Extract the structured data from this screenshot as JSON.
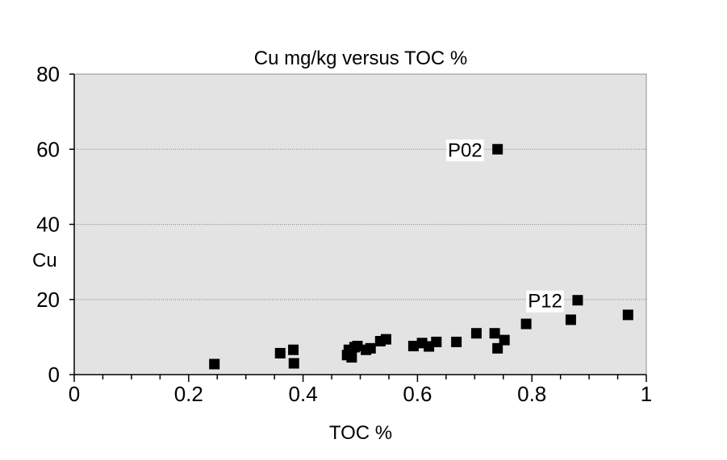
{
  "chart_data": {
    "type": "scatter",
    "title": "Cu mg/kg versus TOC %",
    "xlabel": "TOC %",
    "ylabel": "Cu",
    "xlim": [
      0,
      1
    ],
    "ylim": [
      0,
      80
    ],
    "x_ticks": [
      0,
      0.2,
      0.4,
      0.6,
      0.8,
      1
    ],
    "x_tick_labels": [
      "0",
      "0.2",
      "0.4",
      "0.6",
      "0.8",
      "1"
    ],
    "y_ticks": [
      0,
      20,
      40,
      60,
      80
    ],
    "y_tick_labels": [
      "0",
      "20",
      "40",
      "60",
      "80"
    ],
    "grid": "horizontal",
    "plot_background": "#e3e3e3",
    "marker_color": "#000000",
    "points": [
      {
        "x": 0.245,
        "y": 2.8
      },
      {
        "x": 0.36,
        "y": 5.7
      },
      {
        "x": 0.383,
        "y": 6.6
      },
      {
        "x": 0.384,
        "y": 3.0
      },
      {
        "x": 0.477,
        "y": 5.2
      },
      {
        "x": 0.48,
        "y": 6.6
      },
      {
        "x": 0.485,
        "y": 4.6
      },
      {
        "x": 0.49,
        "y": 7.3
      },
      {
        "x": 0.495,
        "y": 7.6
      },
      {
        "x": 0.51,
        "y": 6.6
      },
      {
        "x": 0.518,
        "y": 7.0
      },
      {
        "x": 0.535,
        "y": 8.9
      },
      {
        "x": 0.545,
        "y": 9.4
      },
      {
        "x": 0.593,
        "y": 7.6
      },
      {
        "x": 0.608,
        "y": 8.4
      },
      {
        "x": 0.62,
        "y": 7.5
      },
      {
        "x": 0.633,
        "y": 8.7
      },
      {
        "x": 0.668,
        "y": 8.7
      },
      {
        "x": 0.703,
        "y": 11.0
      },
      {
        "x": 0.735,
        "y": 11.0
      },
      {
        "x": 0.74,
        "y": 7.0
      },
      {
        "x": 0.752,
        "y": 9.2
      },
      {
        "x": 0.74,
        "y": 60.0,
        "label": "P02"
      },
      {
        "x": 0.79,
        "y": 13.5
      },
      {
        "x": 0.868,
        "y": 14.6
      },
      {
        "x": 0.88,
        "y": 19.8,
        "label": "P12"
      },
      {
        "x": 0.968,
        "y": 15.9
      }
    ]
  }
}
